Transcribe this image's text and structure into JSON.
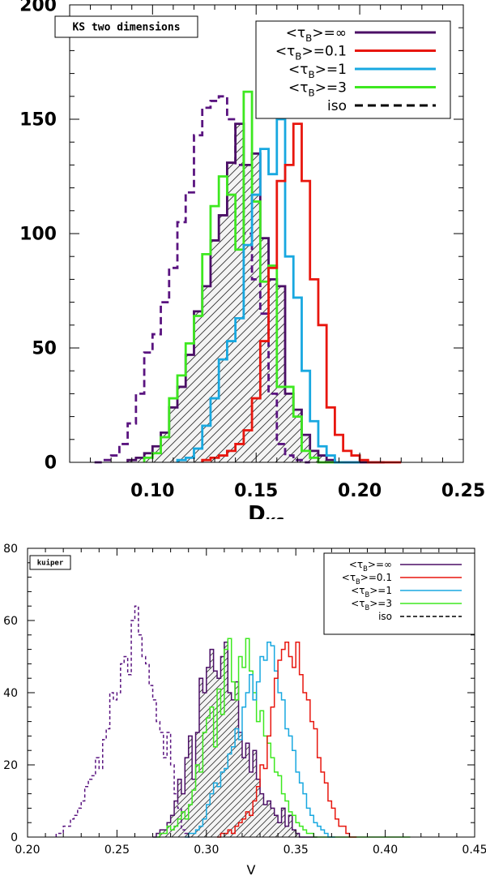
{
  "chart_data": [
    {
      "id": "top",
      "type": "histogram",
      "annotation": "KS two dimensions",
      "xlabel_main": "D",
      "xlabel_sub": "KS",
      "ylabel": "",
      "xlim": [
        0.06,
        0.25
      ],
      "ylim": [
        0,
        200
      ],
      "xticks": [
        0.1,
        0.15,
        0.2,
        0.25
      ],
      "xtick_labels": [
        "0.10",
        "0.15",
        "0.20",
        "0.25"
      ],
      "yticks": [
        0,
        50,
        100,
        150,
        200
      ],
      "ytick_labels": [
        "0",
        "50",
        "100",
        "150",
        "200"
      ],
      "bin_width": 0.004,
      "legend_position": "top-right",
      "legend": [
        {
          "name": "tau_inf",
          "prefix": "<τ",
          "sub": "B",
          "suffix": ">=∞",
          "color": "#4b0f66",
          "dashed": false
        },
        {
          "name": "tau_0.1",
          "prefix": "<τ",
          "sub": "B",
          "suffix": ">=0.1",
          "color": "#e8160e",
          "dashed": false
        },
        {
          "name": "tau_1",
          "prefix": "<τ",
          "sub": "B",
          "suffix": ">=1",
          "color": "#18a8e0",
          "dashed": false
        },
        {
          "name": "tau_3",
          "prefix": "<τ",
          "sub": "B",
          "suffix": ">=3",
          "color": "#3ee820",
          "dashed": false
        },
        {
          "name": "iso",
          "prefix": "iso",
          "sub": "",
          "suffix": "",
          "color": "#000000",
          "dashed": true
        }
      ],
      "series": [
        {
          "name": "iso",
          "color": "#5a1480",
          "dashed": true,
          "hatched": false,
          "x_start": 0.072,
          "values": [
            0,
            1,
            3,
            8,
            17,
            30,
            48,
            56,
            70,
            85,
            105,
            118,
            143,
            155,
            158,
            160,
            150,
            130,
            100,
            80,
            65,
            30,
            8,
            3,
            1,
            0
          ]
        },
        {
          "name": "tau_inf",
          "color": "#4b0f66",
          "dashed": false,
          "hatched": true,
          "x_start": 0.088,
          "values": [
            1,
            2,
            4,
            7,
            13,
            24,
            33,
            47,
            66,
            77,
            97,
            108,
            131,
            148,
            130,
            135,
            98,
            80,
            77,
            30,
            23,
            12,
            5,
            3,
            1,
            0,
            0,
            0,
            0,
            0,
            0
          ]
        },
        {
          "name": "tau_3",
          "color": "#3ee820",
          "dashed": false,
          "hatched": false,
          "x_start": 0.096,
          "values": [
            2,
            4,
            11,
            28,
            38,
            52,
            64,
            91,
            112,
            125,
            117,
            93,
            162,
            114,
            79,
            86,
            33,
            33,
            20,
            5,
            2,
            0,
            0,
            0
          ]
        },
        {
          "name": "tau_1",
          "color": "#18a8e0",
          "dashed": false,
          "hatched": false,
          "x_start": 0.112,
          "values": [
            1,
            2,
            6,
            16,
            28,
            45,
            53,
            63,
            95,
            117,
            137,
            126,
            150,
            90,
            72,
            40,
            18,
            7,
            3,
            0,
            0,
            0
          ]
        },
        {
          "name": "tau_0.1",
          "color": "#e8160e",
          "dashed": false,
          "hatched": false,
          "x_start": 0.124,
          "values": [
            1,
            2,
            3,
            5,
            8,
            14,
            28,
            53,
            85,
            123,
            130,
            148,
            123,
            80,
            60,
            24,
            12,
            5,
            3,
            1,
            0,
            0,
            0,
            0
          ]
        }
      ]
    },
    {
      "id": "bottom",
      "type": "histogram",
      "annotation": "kuiper",
      "xlabel_main": "V",
      "xlabel_sub": "",
      "ylabel": "",
      "xlim": [
        0.2,
        0.45
      ],
      "ylim": [
        0,
        80
      ],
      "xticks": [
        0.2,
        0.25,
        0.3,
        0.35,
        0.4,
        0.45
      ],
      "xtick_labels": [
        "0.20",
        "0.25",
        "0.30",
        "0.35",
        "0.40",
        "0.45"
      ],
      "yticks": [
        0,
        20,
        40,
        60,
        80
      ],
      "ytick_labels": [
        "0",
        "20",
        "40",
        "60",
        "80"
      ],
      "bin_width": 0.002,
      "legend_position": "top-right",
      "legend": [
        {
          "name": "tau_inf",
          "prefix": "<τ",
          "sub": "B",
          "suffix": ">=∞",
          "color": "#4b0f66",
          "dashed": false
        },
        {
          "name": "tau_0.1",
          "prefix": "<τ",
          "sub": "B",
          "suffix": ">=0.1",
          "color": "#e8160e",
          "dashed": false
        },
        {
          "name": "tau_1",
          "prefix": "<τ",
          "sub": "B",
          "suffix": ">=1",
          "color": "#18a8e0",
          "dashed": false
        },
        {
          "name": "tau_3",
          "prefix": "<τ",
          "sub": "B",
          "suffix": ">=3",
          "color": "#3ee820",
          "dashed": false
        },
        {
          "name": "iso",
          "prefix": "iso",
          "sub": "",
          "suffix": "",
          "color": "#000000",
          "dashed": true
        }
      ],
      "series": [
        {
          "name": "iso",
          "color": "#5a1480",
          "dashed": true,
          "hatched": false,
          "x_start": 0.216,
          "values": [
            1,
            1,
            3,
            3,
            5,
            6,
            8,
            10,
            14,
            16,
            17,
            22,
            19,
            27,
            30,
            40,
            38,
            40,
            48,
            50,
            45,
            60,
            64,
            56,
            50,
            48,
            42,
            38,
            32,
            29,
            22,
            29,
            20,
            12,
            8,
            2,
            1,
            0
          ]
        },
        {
          "name": "tau_inf",
          "color": "#4b0f66",
          "dashed": false,
          "hatched": true,
          "x_start": 0.27,
          "values": [
            0,
            1,
            2,
            2,
            4,
            6,
            10,
            16,
            12,
            22,
            28,
            16,
            29,
            44,
            40,
            47,
            52,
            46,
            44,
            50,
            54,
            40,
            38,
            43,
            29,
            22,
            26,
            18,
            24,
            16,
            12,
            9,
            10,
            8,
            6,
            4,
            8,
            3,
            6,
            2,
            1,
            0,
            0,
            0,
            0,
            0
          ]
        },
        {
          "name": "tau_3",
          "color": "#3ee820",
          "dashed": false,
          "hatched": false,
          "x_start": 0.272,
          "values": [
            0,
            1,
            1,
            3,
            2,
            3,
            5,
            7,
            5,
            9,
            13,
            20,
            18,
            29,
            33,
            36,
            25,
            41,
            34,
            52,
            55,
            43,
            38,
            50,
            47,
            55,
            46,
            40,
            32,
            35,
            28,
            26,
            22,
            18,
            17,
            12,
            10,
            7,
            6,
            4,
            3,
            2,
            1,
            1,
            0,
            0,
            0,
            0,
            0,
            0,
            0,
            0,
            0,
            0,
            0,
            0,
            0,
            0,
            0,
            0,
            0,
            0,
            0,
            0,
            0,
            0,
            0,
            0,
            0,
            0,
            0
          ]
        },
        {
          "name": "tau_1",
          "color": "#18a8e0",
          "dashed": false,
          "hatched": false,
          "x_start": 0.288,
          "values": [
            0,
            1,
            1,
            2,
            3,
            5,
            9,
            12,
            15,
            14,
            18,
            19,
            23,
            25,
            30,
            27,
            36,
            40,
            45,
            38,
            43,
            50,
            49,
            54,
            53,
            46,
            40,
            38,
            30,
            28,
            24,
            18,
            15,
            12,
            8,
            6,
            4,
            3,
            2,
            1,
            0,
            0
          ]
        },
        {
          "name": "tau_0.1",
          "color": "#e8160e",
          "dashed": false,
          "hatched": false,
          "x_start": 0.306,
          "values": [
            0,
            1,
            1,
            2,
            1,
            3,
            4,
            5,
            7,
            6,
            10,
            14,
            20,
            19,
            28,
            36,
            44,
            49,
            52,
            54,
            50,
            47,
            54,
            45,
            40,
            38,
            32,
            30,
            22,
            18,
            15,
            10,
            8,
            5,
            3,
            3,
            1,
            0,
            0
          ]
        }
      ]
    }
  ]
}
